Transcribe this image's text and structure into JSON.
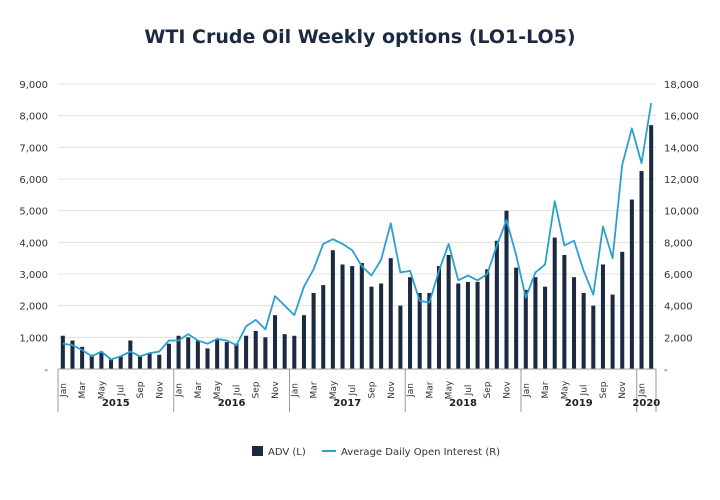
{
  "chart_data": {
    "type": "bar",
    "title": "WTI Crude Oil Weekly options (LO1-LO5)",
    "categories": [
      "Jan",
      "Feb",
      "Mar",
      "Apr",
      "May",
      "Jun",
      "Jul",
      "Aug",
      "Sep",
      "Oct",
      "Nov",
      "Dec",
      "Jan",
      "Feb",
      "Mar",
      "Apr",
      "May",
      "Jun",
      "Jul",
      "Aug",
      "Sep",
      "Oct",
      "Nov",
      "Dec",
      "Jan",
      "Feb",
      "Mar",
      "Apr",
      "May",
      "Jun",
      "Jul",
      "Aug",
      "Sep",
      "Oct",
      "Nov",
      "Dec",
      "Jan",
      "Feb",
      "Mar",
      "Apr",
      "May",
      "Jun",
      "Jul",
      "Aug",
      "Sep",
      "Oct",
      "Nov",
      "Dec",
      "Jan",
      "Feb",
      "Mar",
      "Apr",
      "May",
      "Jun",
      "Jul",
      "Aug",
      "Sep",
      "Oct",
      "Nov",
      "Dec",
      "Jan",
      "Feb"
    ],
    "tick_labels": [
      "Jan",
      "Mar",
      "May",
      "Jul",
      "Sep",
      "Nov"
    ],
    "years": [
      {
        "label": "2015",
        "start": 0,
        "end": 12
      },
      {
        "label": "2016",
        "start": 12,
        "end": 24
      },
      {
        "label": "2017",
        "start": 24,
        "end": 36
      },
      {
        "label": "2018",
        "start": 36,
        "end": 48
      },
      {
        "label": "2019",
        "start": 48,
        "end": 60
      },
      {
        "label": "2020",
        "start": 60,
        "end": 62
      }
    ],
    "series": [
      {
        "name": "ADV (L)",
        "type": "bar",
        "axis": "left",
        "color": "#1b2a40",
        "values": [
          1050,
          900,
          700,
          450,
          550,
          300,
          400,
          900,
          400,
          500,
          450,
          800,
          1050,
          1000,
          900,
          650,
          950,
          850,
          800,
          1050,
          1200,
          1000,
          1700,
          1100,
          1050,
          1700,
          2400,
          2650,
          3750,
          3300,
          3250,
          3350,
          2600,
          2700,
          3500,
          2000,
          2900,
          2400,
          2400,
          3250,
          3600,
          2700,
          2750,
          2750,
          3150,
          4050,
          5000,
          3200,
          2500,
          2900,
          2600,
          4150,
          3600,
          2900,
          2400,
          2000,
          3300,
          2350,
          3700,
          5350,
          6250,
          7700
        ]
      },
      {
        "name": "Average Daily Open Interest (R)",
        "type": "line",
        "axis": "right",
        "color": "#2aa0cf",
        "values": [
          1600,
          1500,
          1200,
          800,
          1100,
          600,
          800,
          1100,
          800,
          1000,
          1100,
          1800,
          1800,
          2200,
          1800,
          1600,
          1900,
          1800,
          1500,
          2700,
          3100,
          2500,
          4600,
          4000,
          3400,
          5200,
          6300,
          7900,
          8200,
          7900,
          7500,
          6500,
          5900,
          6900,
          9200,
          6100,
          6200,
          4300,
          4200,
          6200,
          7900,
          5600,
          5900,
          5600,
          6000,
          7800,
          9400,
          7200,
          4500,
          6100,
          6600,
          10600,
          7800,
          8100,
          6200,
          4700,
          9000,
          7000,
          12900,
          15200,
          13000,
          16800
        ]
      }
    ],
    "left_axis": {
      "ylim": [
        0,
        9000
      ],
      "ticks": [
        "-",
        "1,000",
        "2,000",
        "3,000",
        "4,000",
        "5,000",
        "6,000",
        "7,000",
        "8,000",
        "9,000"
      ]
    },
    "right_axis": {
      "ylim": [
        0,
        18000
      ],
      "ticks": [
        "-",
        "2,000",
        "4,000",
        "6,000",
        "8,000",
        "10,000",
        "12,000",
        "14,000",
        "16,000",
        "18,000"
      ]
    },
    "legend": {
      "placement": "bottom",
      "items": [
        "ADV (L)",
        "Average Daily Open Interest (R)"
      ]
    },
    "grid": "horizontal"
  }
}
